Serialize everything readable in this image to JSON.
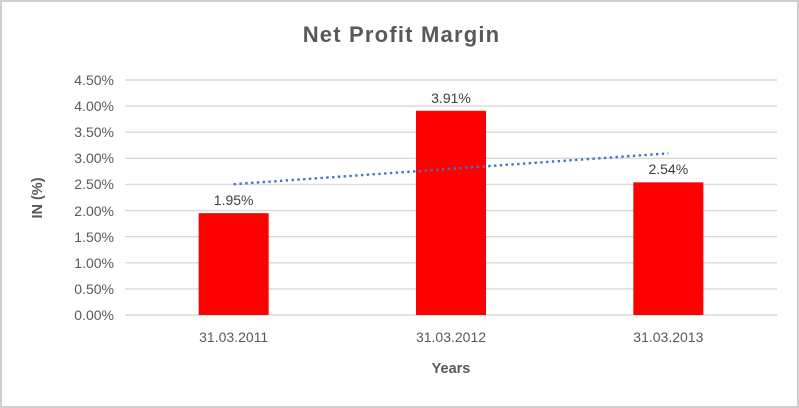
{
  "chart_data": {
    "type": "bar",
    "title": "Net Profit Margin",
    "xlabel": "Years",
    "ylabel": "IN (%)",
    "categories": [
      "31.03.2011",
      "31.03.2012",
      "31.03.2013"
    ],
    "values": [
      1.95,
      3.91,
      2.54
    ],
    "data_labels": [
      "1.95%",
      "3.91%",
      "2.54%"
    ],
    "series_name": "Net Profit Margin",
    "ylim": [
      0,
      4.5
    ],
    "ytick_step": 0.5,
    "ytick_labels": [
      "0.00%",
      "0.50%",
      "1.00%",
      "1.50%",
      "2.00%",
      "2.50%",
      "3.00%",
      "3.50%",
      "4.00%",
      "4.50%"
    ],
    "grid": true,
    "legend": "none",
    "trendline": {
      "type": "linear",
      "style": "dotted",
      "start_value_pct": 2.505,
      "end_value_pct": 3.095
    },
    "colors": {
      "bar": "#FF0000",
      "trendline": "#4472C4",
      "gridline": "#D9D9D9",
      "title_text": "#595959",
      "axis_text": "#595959",
      "data_label_text": "#404040",
      "border": "#CFCFCF",
      "background": "#FFFFFF"
    }
  }
}
